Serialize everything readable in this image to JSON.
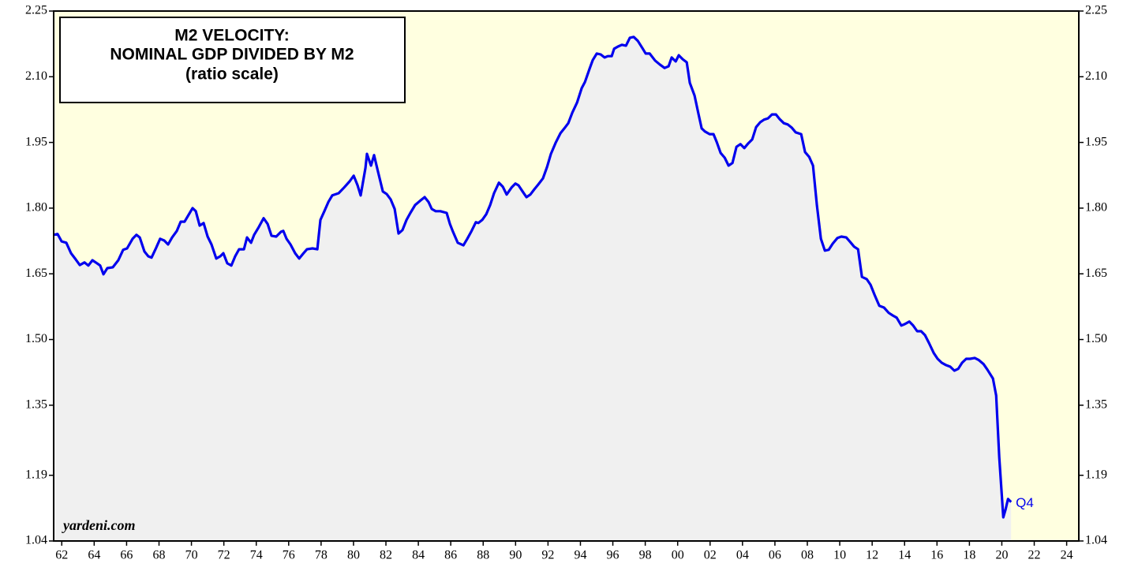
{
  "chart_data": {
    "type": "line",
    "title": [
      "M2 VELOCITY:",
      "NOMINAL GDP DIVIDED BY M2"
    ],
    "subtitle": "(ratio scale)",
    "source": "yardeni.com",
    "annotations": [
      {
        "text": "Q4"
      }
    ],
    "color": "#0000ee",
    "fill_color": "#f0f0f0",
    "background": "#ffffe0",
    "x": [
      1962.0,
      1962.24,
      1962.49,
      1962.78,
      1963.07,
      1963.36,
      1963.61,
      1963.9,
      1964.14,
      1964.39,
      1964.68,
      1964.87,
      1965.07,
      1965.31,
      1965.65,
      1965.99,
      1966.29,
      1966.53,
      1966.87,
      1967.11,
      1967.31,
      1967.6,
      1967.84,
      1968.04,
      1968.33,
      1968.57,
      1968.82,
      1969.06,
      1969.31,
      1969.6,
      1969.84,
      1970.08,
      1970.28,
      1970.57,
      1970.77,
      1971.01,
      1971.25,
      1971.5,
      1971.74,
      1972.03,
      1972.28,
      1972.47,
      1972.71,
      1972.96,
      1973.2,
      1973.44,
      1973.74,
      1973.93,
      1974.18,
      1974.37,
      1974.66,
      1974.95,
      1975.2,
      1975.44,
      1975.73,
      1976.03,
      1976.17,
      1976.37,
      1976.61,
      1976.9,
      1977.15,
      1977.39,
      1977.63,
      1977.97,
      1978.27,
      1978.46,
      1978.7,
      1978.95,
      1979.19,
      1979.58,
      1979.92,
      1980.26,
      1980.51,
      1980.75,
      1980.94,
      1981.24,
      1981.33,
      1981.58,
      1981.77,
      1982.01,
      1982.31,
      1982.55,
      1982.79,
      1983.04,
      1983.28,
      1983.52,
      1983.77,
      1984.01,
      1984.3,
      1984.65,
      1984.89,
      1985.13,
      1985.33,
      1985.57,
      1985.86,
      1986.25,
      1986.45,
      1986.64,
      1986.93,
      1987.28,
      1987.52,
      1987.76,
      1988.05,
      1988.2,
      1988.44,
      1988.69,
      1988.93,
      1989.17,
      1989.47,
      1989.71,
      1989.95,
      1990.25,
      1990.49,
      1990.68,
      1990.93,
      1991.17,
      1991.41,
      1991.66,
      1991.9,
      1992.19,
      1992.44,
      1992.68,
      1992.97,
      1993.27,
      1993.51,
      1993.75,
      1994.0,
      1994.29,
      1994.58,
      1994.78,
      1995.07,
      1995.26,
      1995.51,
      1995.75,
      1995.99,
      1996.19,
      1996.43,
      1996.58,
      1996.82,
      1997.06,
      1997.31,
      1997.55,
      1997.79,
      1998.04,
      1998.33,
      1998.53,
      1998.77,
      1999.11,
      1999.4,
      1999.69,
      1999.94,
      2000.13,
      2000.38,
      2000.57,
      2000.81,
      2001.06,
      2001.25,
      2001.54,
      2001.79,
      2001.98,
      2002.18,
      2002.47,
      2002.71,
      2002.91,
      2003.15,
      2003.4,
      2003.64,
      2003.88,
      2004.13,
      2004.37,
      2004.61,
      2004.86,
      2005.1,
      2005.34,
      2005.59,
      2005.83,
      2006.07,
      2006.32,
      2006.56,
      2006.8,
      2007.05,
      2007.29,
      2007.53,
      2007.78,
      2008.12,
      2008.36,
      2008.61,
      2008.85,
      2009.09,
      2009.34,
      2009.58,
      2009.82,
      2010.07,
      2010.36,
      2010.6,
      2010.9,
      2011.14,
      2011.39,
      2011.63,
      2011.87,
      2012.16,
      2012.4,
      2012.65,
      2012.94,
      2013.23,
      2013.52,
      2013.77,
      2014.01,
      2014.3,
      2014.5,
      2014.79,
      2015.03,
      2015.28,
      2015.52,
      2015.76,
      2016.01,
      2016.3,
      2016.54,
      2016.79,
      2017.03,
      2017.32,
      2017.57,
      2017.81,
      2018.05,
      2018.3,
      2018.54,
      2018.83,
      2019.08,
      2019.37,
      2019.61,
      2019.95,
      2020.15,
      2020.34,
      2020.59,
      2020.73,
      2020.88,
      2021.07
    ],
    "values": [
      1.739,
      1.741,
      1.724,
      1.721,
      1.697,
      1.683,
      1.67,
      1.676,
      1.669,
      1.681,
      1.674,
      1.669,
      1.649,
      1.663,
      1.665,
      1.681,
      1.705,
      1.708,
      1.73,
      1.739,
      1.733,
      1.701,
      1.69,
      1.687,
      1.71,
      1.73,
      1.726,
      1.717,
      1.733,
      1.748,
      1.769,
      1.769,
      1.782,
      1.8,
      1.793,
      1.76,
      1.766,
      1.735,
      1.717,
      1.685,
      1.69,
      1.697,
      1.674,
      1.669,
      1.69,
      1.706,
      1.706,
      1.733,
      1.721,
      1.739,
      1.757,
      1.777,
      1.764,
      1.737,
      1.735,
      1.746,
      1.748,
      1.73,
      1.717,
      1.697,
      1.685,
      1.696,
      1.706,
      1.708,
      1.706,
      1.773,
      1.793,
      1.814,
      1.829,
      1.834,
      1.847,
      1.861,
      1.874,
      1.852,
      1.829,
      1.892,
      1.924,
      1.897,
      1.921,
      1.883,
      1.838,
      1.832,
      1.82,
      1.798,
      1.742,
      1.75,
      1.773,
      1.789,
      1.807,
      1.818,
      1.825,
      1.814,
      1.798,
      1.793,
      1.793,
      1.789,
      1.764,
      1.746,
      1.721,
      1.715,
      1.73,
      1.746,
      1.768,
      1.766,
      1.773,
      1.786,
      1.807,
      1.834,
      1.858,
      1.849,
      1.831,
      1.847,
      1.856,
      1.852,
      1.838,
      1.825,
      1.831,
      1.843,
      1.854,
      1.868,
      1.894,
      1.924,
      1.949,
      1.971,
      1.982,
      1.994,
      2.018,
      2.041,
      2.074,
      2.088,
      2.119,
      2.138,
      2.153,
      2.151,
      2.144,
      2.147,
      2.147,
      2.164,
      2.169,
      2.173,
      2.171,
      2.189,
      2.191,
      2.182,
      2.165,
      2.153,
      2.153,
      2.137,
      2.128,
      2.12,
      2.124,
      2.144,
      2.135,
      2.149,
      2.14,
      2.133,
      2.086,
      2.057,
      2.014,
      1.982,
      1.975,
      1.969,
      1.969,
      1.951,
      1.926,
      1.915,
      1.897,
      1.903,
      1.94,
      1.946,
      1.937,
      1.948,
      1.957,
      1.985,
      1.996,
      2.002,
      2.005,
      2.014,
      2.014,
      2.003,
      1.994,
      1.991,
      1.984,
      1.973,
      1.969,
      1.928,
      1.917,
      1.897,
      1.807,
      1.73,
      1.703,
      1.705,
      1.719,
      1.732,
      1.735,
      1.733,
      1.723,
      1.712,
      1.706,
      1.643,
      1.638,
      1.625,
      1.602,
      1.577,
      1.573,
      1.561,
      1.555,
      1.55,
      1.532,
      1.535,
      1.541,
      1.532,
      1.519,
      1.519,
      1.51,
      1.492,
      1.469,
      1.456,
      1.447,
      1.442,
      1.438,
      1.429,
      1.433,
      1.447,
      1.456,
      1.456,
      1.458,
      1.453,
      1.444,
      1.431,
      1.411,
      1.372,
      1.231,
      1.094,
      1.112,
      1.136,
      1.129
    ],
    "xlim": [
      1962,
      2025.25
    ],
    "xticks": [
      {
        "value": 1962.5,
        "label": "62"
      },
      {
        "value": 1964.5,
        "label": "64"
      },
      {
        "value": 1966.5,
        "label": "66"
      },
      {
        "value": 1968.5,
        "label": "68"
      },
      {
        "value": 1970.5,
        "label": "70"
      },
      {
        "value": 1972.5,
        "label": "72"
      },
      {
        "value": 1974.5,
        "label": "74"
      },
      {
        "value": 1976.5,
        "label": "76"
      },
      {
        "value": 1978.5,
        "label": "78"
      },
      {
        "value": 1980.5,
        "label": "80"
      },
      {
        "value": 1982.5,
        "label": "82"
      },
      {
        "value": 1984.5,
        "label": "84"
      },
      {
        "value": 1986.5,
        "label": "86"
      },
      {
        "value": 1988.5,
        "label": "88"
      },
      {
        "value": 1990.5,
        "label": "90"
      },
      {
        "value": 1992.5,
        "label": "92"
      },
      {
        "value": 1994.5,
        "label": "94"
      },
      {
        "value": 1996.5,
        "label": "96"
      },
      {
        "value": 1998.5,
        "label": "98"
      },
      {
        "value": 2000.5,
        "label": "00"
      },
      {
        "value": 2002.5,
        "label": "02"
      },
      {
        "value": 2004.5,
        "label": "04"
      },
      {
        "value": 2006.5,
        "label": "06"
      },
      {
        "value": 2008.5,
        "label": "08"
      },
      {
        "value": 2010.5,
        "label": "10"
      },
      {
        "value": 2012.5,
        "label": "12"
      },
      {
        "value": 2014.5,
        "label": "14"
      },
      {
        "value": 2016.5,
        "label": "16"
      },
      {
        "value": 2018.5,
        "label": "18"
      },
      {
        "value": 2020.5,
        "label": "20"
      },
      {
        "value": 2022.5,
        "label": "22"
      },
      {
        "value": 2024.5,
        "label": "24"
      }
    ],
    "ylim": [
      1.04,
      2.25
    ],
    "yticks": [
      1.04,
      1.19,
      1.35,
      {
        "value": 1.5,
        "label": "1.50"
      },
      1.65,
      {
        "value": 1.8,
        "label": "1.80"
      },
      1.95,
      {
        "value": 2.1,
        "label": "2.10"
      },
      2.25
    ],
    "grid": false
  }
}
